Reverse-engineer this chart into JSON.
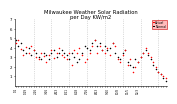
{
  "title": "Milwaukee Weather Solar Radiation\nper Day KW/m2",
  "title_fontsize": 3.8,
  "background_color": "#ffffff",
  "grid_color": "#bbbbbb",
  "ylim": [
    0,
    7
  ],
  "yticks": [
    1,
    2,
    3,
    4,
    5,
    6,
    7
  ],
  "ytick_fontsize": 2.8,
  "xtick_fontsize": 2.0,
  "dot_size": 1.2,
  "series1_color": "#ff0000",
  "series2_color": "#000000",
  "legend_label1": "Actual",
  "legend_label2": "Normal",
  "series1": [
    4.5,
    4.8,
    3.9,
    3.2,
    4.1,
    3.5,
    4.2,
    3.8,
    3.0,
    2.8,
    3.5,
    3.1,
    2.5,
    3.2,
    3.8,
    2.9,
    3.5,
    4.0,
    3.2,
    3.0,
    2.8,
    3.5,
    2.2,
    3.8,
    3.5,
    4.0,
    3.2,
    2.5,
    2.8,
    3.5,
    4.2,
    4.8,
    3.5,
    4.2,
    3.8,
    3.5,
    4.0,
    3.2,
    4.5,
    4.2,
    2.8,
    2.5,
    3.2,
    3.8,
    2.2,
    2.8,
    1.5,
    2.0,
    2.5,
    3.0,
    3.5,
    4.0,
    3.5,
    3.0,
    2.5,
    2.0,
    1.5,
    1.2,
    1.0,
    0.8
  ],
  "series2": [
    4.8,
    4.2,
    4.5,
    3.8,
    3.5,
    4.0,
    3.2,
    3.8,
    3.5,
    3.0,
    2.8,
    3.5,
    3.2,
    2.8,
    3.5,
    3.8,
    3.0,
    3.5,
    3.8,
    3.5,
    3.2,
    2.8,
    3.5,
    3.0,
    2.5,
    2.8,
    3.5,
    4.2,
    4.0,
    3.8,
    4.5,
    4.8,
    4.2,
    4.5,
    3.8,
    4.2,
    3.8,
    4.0,
    4.5,
    3.5,
    3.0,
    2.8,
    3.5,
    3.8,
    2.5,
    2.2,
    2.0,
    2.8,
    2.5,
    3.0,
    3.5,
    3.8,
    3.2,
    2.8,
    2.2,
    1.8,
    1.5,
    1.2,
    0.8,
    0.5
  ],
  "x_labels": [
    "1/1",
    "",
    "",
    "",
    "1/29",
    "",
    "",
    "",
    "2/26",
    "",
    "",
    "",
    "3/26",
    "",
    "",
    "",
    "4/23",
    "",
    "",
    "",
    "5/21",
    "",
    "",
    "",
    "6/18",
    "",
    "",
    "",
    "7/16",
    "",
    "",
    "",
    "8/13",
    "",
    "",
    "",
    "9/10",
    "",
    "",
    "",
    "10/8",
    "",
    "",
    "",
    "11/5",
    "",
    "",
    "",
    "12/3",
    "",
    "",
    "",
    "",
    "",
    "",
    "",
    "",
    "",
    "",
    ""
  ],
  "vline_positions": [
    7,
    14,
    21,
    28,
    35,
    42,
    49,
    56
  ],
  "n_points": 60
}
